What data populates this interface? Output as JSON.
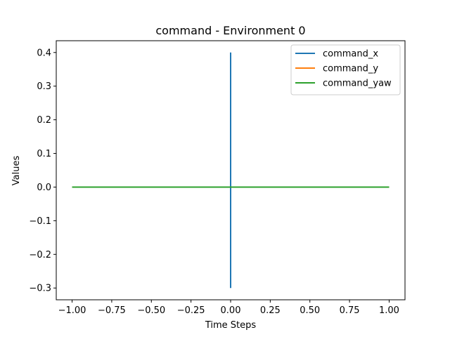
{
  "chart_data": {
    "type": "line",
    "title": "command - Environment 0",
    "xlabel": "Time Steps",
    "ylabel": "Values",
    "xlim": [
      -1.1,
      1.1
    ],
    "ylim": [
      -0.335,
      0.435
    ],
    "x_ticks": [
      -1.0,
      -0.75,
      -0.5,
      -0.25,
      0.0,
      0.25,
      0.5,
      0.75,
      1.0
    ],
    "x_tick_labels": [
      "−1.00",
      "−0.75",
      "−0.50",
      "−0.25",
      "0.00",
      "0.25",
      "0.50",
      "0.75",
      "1.00"
    ],
    "y_ticks": [
      -0.3,
      -0.2,
      -0.1,
      0.0,
      0.1,
      0.2,
      0.3,
      0.4
    ],
    "y_tick_labels": [
      "−0.3",
      "−0.2",
      "−0.1",
      "0.0",
      "0.1",
      "0.2",
      "0.3",
      "0.4"
    ],
    "grid": false,
    "legend_position": "top-right",
    "series": [
      {
        "name": "command_x",
        "color": "#1f77b4",
        "x": [
          0.0,
          0.0
        ],
        "y": [
          -0.3,
          0.4
        ]
      },
      {
        "name": "command_y",
        "color": "#ff7f0e",
        "x": [
          -1.0,
          1.0
        ],
        "y": [
          0.0,
          0.0
        ]
      },
      {
        "name": "command_yaw",
        "color": "#2ca02c",
        "x": [
          -1.0,
          1.0
        ],
        "y": [
          0.0,
          0.0
        ]
      }
    ]
  }
}
